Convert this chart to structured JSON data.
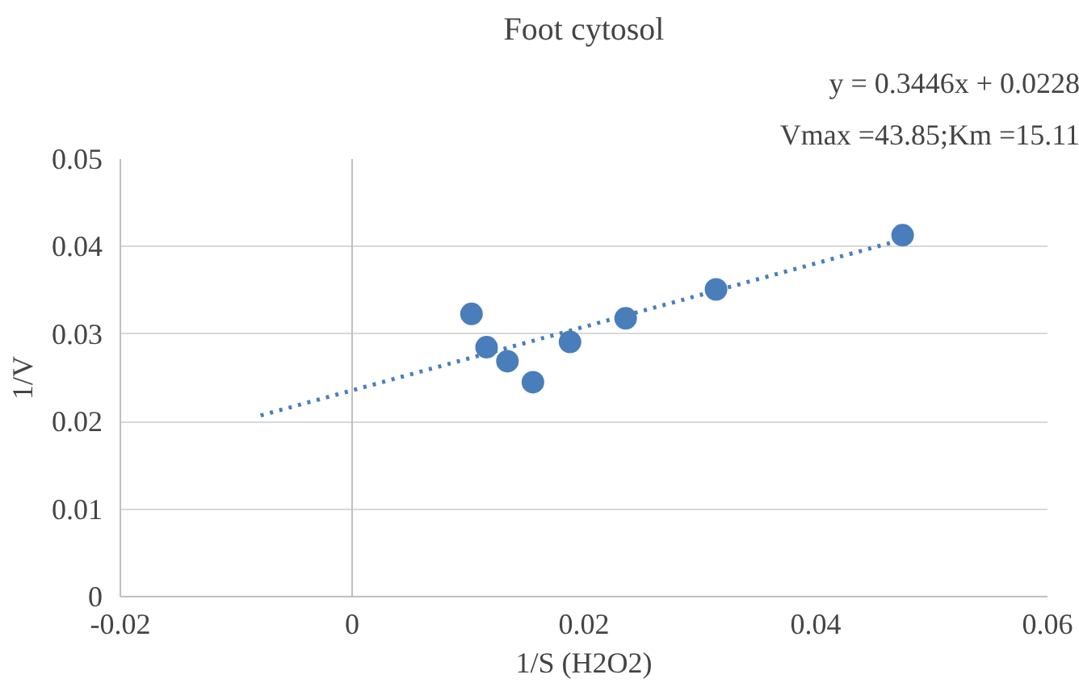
{
  "chart_data": {
    "type": "scatter",
    "title": "Foot cytosol",
    "xlabel": "1/S (H2O2)",
    "ylabel": "1/V",
    "x": [
      0.0103,
      0.0116,
      0.0134,
      0.0156,
      0.0188,
      0.0236,
      0.0314,
      0.0475
    ],
    "series": [
      {
        "color": "#4a7ebb",
        "values": [
          0.0323,
          0.0285,
          0.0269,
          0.0245,
          0.0291,
          0.0318,
          0.0351,
          0.0413
        ],
        "marker": "circle"
      },
      {
        "type": "line",
        "color": "#4a7ebb",
        "x": [
          -0.0079,
          0.0475
        ],
        "values": [
          0.0207,
          0.0408
        ],
        "line_style": "dotted"
      }
    ],
    "annotations": [
      "y = 0.3446x + 0.0228",
      "Vmax =43.85;Km =15.11"
    ],
    "xlim": [
      -0.02,
      0.06
    ],
    "ylim": [
      0,
      0.05
    ],
    "xticks": [
      {
        "value": -0.02,
        "label": "-0.02"
      },
      0,
      0.02,
      0.04,
      0.06
    ],
    "yticks": [
      0,
      0.01,
      0.02,
      0.03,
      0.04,
      0.05
    ],
    "grid": "y"
  }
}
